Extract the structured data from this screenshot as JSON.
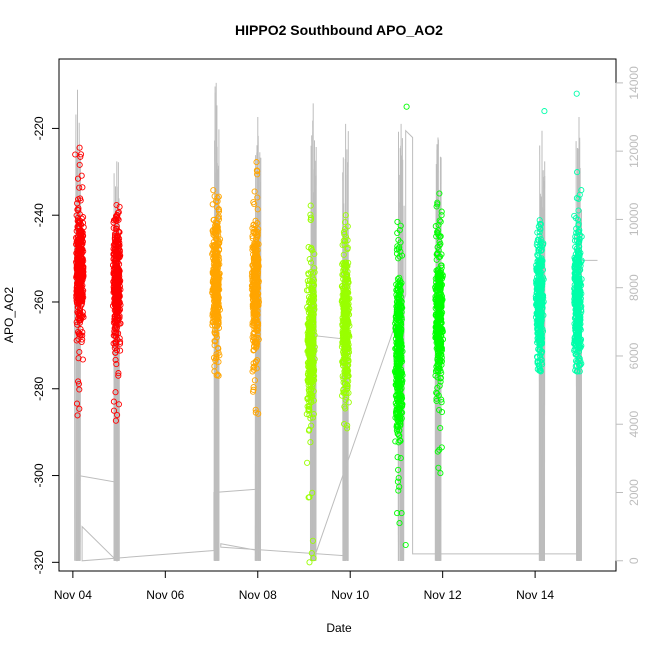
{
  "chart_data": {
    "type": "scatter",
    "title": "HIPPO2 Southbound APO_AO2",
    "xlabel": "Date",
    "ylabel": "APO_AO2",
    "xlim": [
      3.7,
      15.75
    ],
    "ylim": [
      -322,
      -204
    ],
    "y2lim": [
      -300,
      14700
    ],
    "x_ticks": [
      {
        "value": 4,
        "label": "Nov 04"
      },
      {
        "value": 6,
        "label": "Nov 06"
      },
      {
        "value": 8,
        "label": "Nov 08"
      },
      {
        "value": 10,
        "label": "Nov 10"
      },
      {
        "value": 12,
        "label": "Nov 12"
      },
      {
        "value": 14,
        "label": "Nov 14"
      }
    ],
    "y_ticks": [
      {
        "value": -220,
        "label": "-220"
      },
      {
        "value": -240,
        "label": "-240"
      },
      {
        "value": -260,
        "label": "-260"
      },
      {
        "value": -280,
        "label": "-280"
      },
      {
        "value": -300,
        "label": "-300"
      },
      {
        "value": -320,
        "label": "-320"
      }
    ],
    "y2_ticks": [
      {
        "value": 0,
        "label": "0"
      },
      {
        "value": 2000,
        "label": "2000"
      },
      {
        "value": 4000,
        "label": "4000"
      },
      {
        "value": 6000,
        "label": "6000"
      },
      {
        "value": 8000,
        "label": "8000"
      },
      {
        "value": 10000,
        "label": "10000"
      },
      {
        "value": 12000,
        "label": "12000"
      },
      {
        "value": 14000,
        "label": "14000"
      }
    ],
    "altitude_color": "#bdbdbd",
    "clusters": [
      {
        "x": 4.15,
        "spread": 0.09,
        "center": -253,
        "sd": 7,
        "min": -287,
        "max": -224,
        "count": 420,
        "color": "#ff0000"
      },
      {
        "x": 4.95,
        "spread": 0.09,
        "center": -256,
        "sd": 7,
        "min": -288,
        "max": -237,
        "count": 380,
        "color": "#ff0000"
      },
      {
        "x": 7.1,
        "spread": 0.09,
        "center": -255,
        "sd": 7,
        "min": -277,
        "max": -234,
        "count": 380,
        "color": "#ffa500"
      },
      {
        "x": 7.95,
        "spread": 0.09,
        "center": -257,
        "sd": 7,
        "min": -286,
        "max": -226,
        "count": 380,
        "color": "#ffa500"
      },
      {
        "x": 9.15,
        "spread": 0.09,
        "center": -270,
        "sd": 8,
        "min": -320,
        "max": -237,
        "count": 380,
        "color": "#99ff00"
      },
      {
        "x": 9.9,
        "spread": 0.09,
        "center": -265,
        "sd": 8,
        "min": -291,
        "max": -240,
        "count": 380,
        "color": "#99ff00"
      },
      {
        "x": 11.05,
        "spread": 0.09,
        "center": -272,
        "sd": 10,
        "min": -312,
        "max": -240,
        "count": 420,
        "color": "#00ff00"
      },
      {
        "x": 11.92,
        "spread": 0.09,
        "center": -263,
        "sd": 8,
        "min": -300,
        "max": -235,
        "count": 380,
        "color": "#00ff00"
      },
      {
        "x": 14.1,
        "spread": 0.09,
        "center": -260,
        "sd": 7,
        "min": -276,
        "max": -241,
        "count": 380,
        "color": "#00ffaa"
      },
      {
        "x": 14.92,
        "spread": 0.09,
        "center": -260,
        "sd": 8,
        "min": -276,
        "max": -229,
        "count": 380,
        "color": "#00ffaa"
      }
    ],
    "outliers": [
      {
        "x": 11.22,
        "y": -215,
        "color": "#00ff00"
      },
      {
        "x": 11.2,
        "y": -316,
        "color": "#00ff00"
      },
      {
        "x": 14.2,
        "y": -216,
        "color": "#00ffaa"
      },
      {
        "x": 14.9,
        "y": -212,
        "color": "#00ffaa"
      },
      {
        "x": 9.12,
        "y": -320,
        "color": "#99ff00"
      },
      {
        "x": 4.05,
        "y": -226,
        "color": "#ff0000"
      }
    ],
    "altitude_profile": {
      "spikes": [
        {
          "x": 4.1,
          "max": 13800
        },
        {
          "x": 4.95,
          "max": 11700
        },
        {
          "x": 7.1,
          "max": 14000
        },
        {
          "x": 8.0,
          "max": 13000
        },
        {
          "x": 9.2,
          "max": 13400
        },
        {
          "x": 9.9,
          "max": 12800
        },
        {
          "x": 11.1,
          "max": 12800
        },
        {
          "x": 11.9,
          "max": 12400
        },
        {
          "x": 14.15,
          "max": 12600
        },
        {
          "x": 14.95,
          "max": 13000
        }
      ],
      "path": [
        [
          4.1,
          2500
        ],
        [
          4.95,
          2300
        ],
        [
          4.95,
          0
        ],
        [
          4.2,
          1000
        ],
        [
          4.2,
          0
        ],
        [
          7.05,
          300
        ],
        [
          7.05,
          2000
        ],
        [
          8.0,
          2100
        ],
        [
          8.0,
          300
        ],
        [
          7.2,
          500
        ],
        [
          7.2,
          400
        ],
        [
          9.85,
          150
        ],
        [
          9.85,
          6500
        ],
        [
          9.2,
          6600
        ],
        [
          9.2,
          0
        ],
        [
          11.2,
          7800
        ],
        [
          11.2,
          12600
        ],
        [
          11.35,
          12400
        ],
        [
          11.35,
          200
        ],
        [
          14.9,
          200
        ],
        [
          14.9,
          8800
        ],
        [
          15.35,
          8800
        ]
      ]
    }
  }
}
